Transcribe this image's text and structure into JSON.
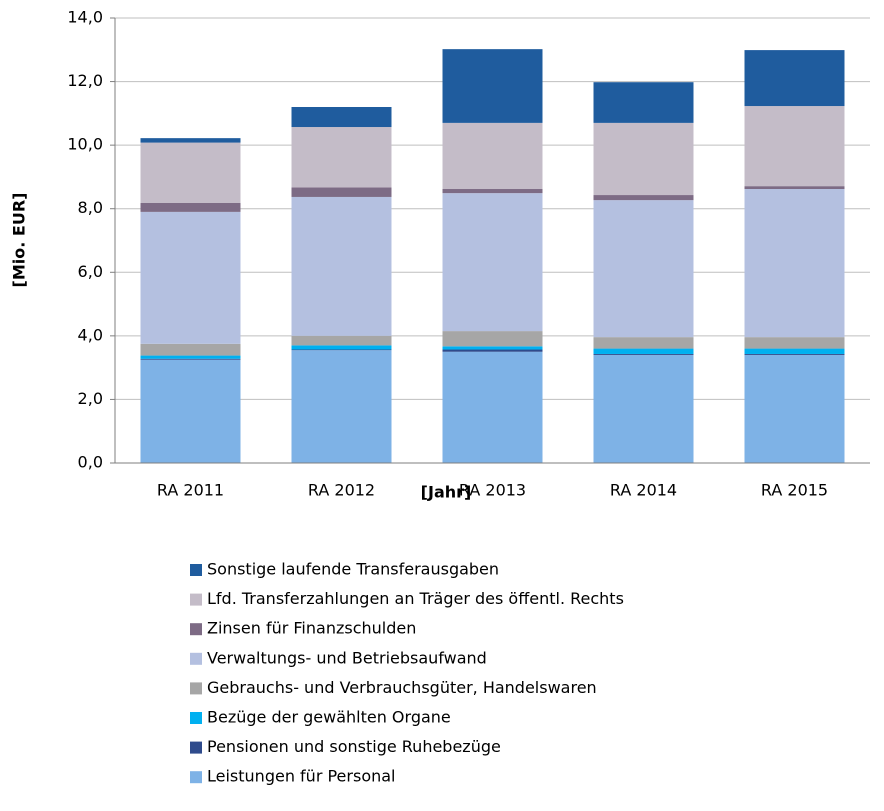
{
  "chart_data": {
    "type": "stacked_bar",
    "xlabel": "[Jahr]",
    "ylabel": "[Mio. EUR]",
    "categories": [
      "RA 2011",
      "RA 2012",
      "RA 2013",
      "RA 2014",
      "RA 2015"
    ],
    "series": [
      {
        "name": "Leistungen für Personal",
        "color": "#7eb2e6",
        "values": [
          3.25,
          3.55,
          3.5,
          3.4,
          3.4
        ]
      },
      {
        "name": "Pensionen und sonstige Ruhebezüge",
        "color": "#2f4b8c",
        "values": [
          0.03,
          0.02,
          0.07,
          0.03,
          0.03
        ]
      },
      {
        "name": "Bezüge der gewählten Organe",
        "color": "#00b0f0",
        "values": [
          0.1,
          0.13,
          0.1,
          0.17,
          0.17
        ]
      },
      {
        "name": "Gebrauchs- und Verbrauchsgüter, Handelswaren",
        "color": "#a6a6a6",
        "values": [
          0.37,
          0.3,
          0.48,
          0.36,
          0.36
        ]
      },
      {
        "name": "Verwaltungs- und Betriebsaufwand",
        "color": "#b4c0e0",
        "values": [
          4.15,
          4.37,
          4.34,
          4.31,
          4.66
        ]
      },
      {
        "name": "Zinsen für Finanzschulden",
        "color": "#7d6b85",
        "values": [
          0.28,
          0.3,
          0.13,
          0.16,
          0.09
        ]
      },
      {
        "name": "Lfd. Transferzahlungen an Träger des öffentl. Rechts",
        "color": "#c4bcc8",
        "values": [
          1.9,
          1.9,
          2.08,
          2.27,
          2.52
        ]
      },
      {
        "name": "Sonstige laufende Transferausgaben",
        "color": "#1f5c9e",
        "values": [
          0.14,
          0.63,
          2.32,
          1.28,
          1.76
        ]
      }
    ],
    "ylim": [
      0,
      14
    ],
    "yticks": [
      {
        "value": 0,
        "label": "0,0"
      },
      {
        "value": 2,
        "label": "2,0"
      },
      {
        "value": 4,
        "label": "4,0"
      },
      {
        "value": 6,
        "label": "6,0"
      },
      {
        "value": 8,
        "label": "8,0"
      },
      {
        "value": 10,
        "label": "10,0"
      },
      {
        "value": 12,
        "label": "12,0"
      },
      {
        "value": 14,
        "label": "14,0"
      }
    ],
    "grid": true
  }
}
